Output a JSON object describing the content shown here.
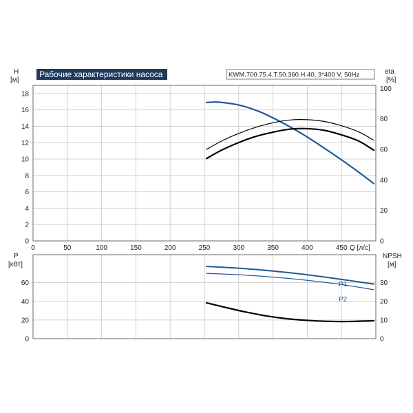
{
  "chart_data": [
    {
      "type": "line",
      "title": "Рабочие характеристики насоса",
      "subtitle": "KWM.700.75.4.T.50.360.H.40, 3*400 V, 50Hz",
      "xlabel": "Q [л/с]",
      "ylabel": [
        "H",
        "[м]"
      ],
      "ylabel_right": [
        "eta",
        "[%]"
      ],
      "xlim": [
        0,
        500
      ],
      "ylim": [
        0,
        19
      ],
      "ylim_right": [
        0,
        102
      ],
      "xticks": [
        "0",
        "50",
        "100",
        "150",
        "200",
        "250",
        "300",
        "350",
        "400",
        "450"
      ],
      "yticks": [
        "0",
        "2",
        "4",
        "6",
        "8",
        "10",
        "12",
        "14",
        "16",
        "18"
      ],
      "yticks_right": [
        "0",
        "20",
        "40",
        "60",
        "80",
        "100"
      ],
      "grid": true,
      "series": [
        {
          "axis": "left",
          "color": "#1f5a9a",
          "x": [
            253,
            270,
            300,
            330,
            360,
            390,
            420,
            450,
            475,
            497
          ],
          "y": [
            16.9,
            16.95,
            16.6,
            15.8,
            14.6,
            13.2,
            11.6,
            9.9,
            8.4,
            7.0
          ]
        },
        {
          "axis": "right",
          "color": "#000000",
          "x": [
            253,
            275,
            300,
            325,
            350,
            375,
            400,
            425,
            450,
            475,
            497
          ],
          "y": [
            60,
            65.5,
            70.5,
            74.5,
            77.5,
            79.3,
            79.5,
            78.3,
            75.5,
            71.5,
            66
          ]
        },
        {
          "axis": "right",
          "color": "#000000",
          "x": [
            253,
            275,
            300,
            325,
            350,
            375,
            400,
            425,
            450,
            475,
            497
          ],
          "y": [
            54,
            59.5,
            64.5,
            68.5,
            71.3,
            73.3,
            73.6,
            72.5,
            69.5,
            65.5,
            59.5
          ]
        }
      ]
    },
    {
      "type": "line",
      "xlim": [
        0,
        500
      ],
      "ylim": [
        0,
        90
      ],
      "ylim_right": [
        0,
        45
      ],
      "ylabel": [
        "P",
        "[кВт]"
      ],
      "ylabel_right": [
        "NPSH",
        "[м]"
      ],
      "yticks": [
        "0",
        "20",
        "40",
        "60"
      ],
      "yticks_right": [
        "0",
        "10",
        "20",
        "30"
      ],
      "grid": true,
      "series": [
        {
          "name": "P1",
          "axis": "left",
          "color": "#1f5a9a",
          "x": [
            253,
            300,
            350,
            400,
            450,
            497
          ],
          "y": [
            77.5,
            75.5,
            72.5,
            68.5,
            63.5,
            58.5
          ]
        },
        {
          "name": "P2",
          "axis": "left",
          "color": "#1f5a9a",
          "x": [
            253,
            300,
            350,
            400,
            450,
            497
          ],
          "y": [
            70,
            68.5,
            66,
            62.5,
            58,
            52.5
          ]
        },
        {
          "axis": "right",
          "color": "#000000",
          "x": [
            253,
            280,
            310,
            340,
            370,
            400,
            430,
            460,
            497
          ],
          "y": [
            19.2,
            16.8,
            14.3,
            12.2,
            10.7,
            9.8,
            9.3,
            9.2,
            9.6
          ]
        }
      ]
    }
  ]
}
